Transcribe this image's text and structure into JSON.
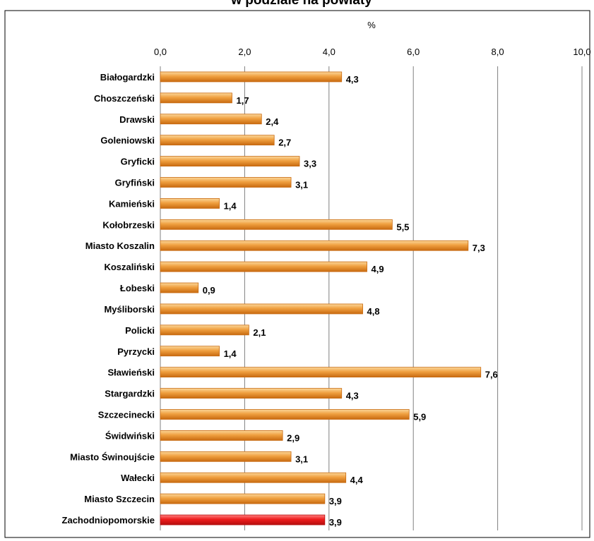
{
  "chart_data": {
    "type": "bar",
    "orientation": "horizontal",
    "title": "w podziale na powiaty",
    "xlabel": "%",
    "xlim": [
      0,
      10
    ],
    "x_ticks": [
      "0,0",
      "2,0",
      "4,0",
      "6,0",
      "8,0",
      "10,0"
    ],
    "grid": "vertical",
    "categories": [
      "Białogardzki",
      "Choszczeński",
      "Drawski",
      "Goleniowski",
      "Gryficki",
      "Gryfiński",
      "Kamieński",
      "Kołobrzeski",
      "Miasto Koszalin",
      "Koszaliński",
      "Łobeski",
      "Myśliborski",
      "Policki",
      "Pyrzycki",
      "Sławieński",
      "Stargardzki",
      "Szczecinecki",
      "Świdwiński",
      "Miasto Świnoujście",
      "Wałecki",
      "Miasto Szczecin",
      "Zachodniopomorskie"
    ],
    "values": [
      4.3,
      1.7,
      2.4,
      2.7,
      3.3,
      3.1,
      1.4,
      5.5,
      7.3,
      4.9,
      0.9,
      4.8,
      2.1,
      1.4,
      7.6,
      4.3,
      5.9,
      2.9,
      3.1,
      4.4,
      3.9,
      3.9
    ],
    "value_labels": [
      "4,3",
      "1,7",
      "2,4",
      "2,7",
      "3,3",
      "3,1",
      "1,4",
      "5,5",
      "7,3",
      "4,9",
      "0,9",
      "4,8",
      "2,1",
      "1,4",
      "7,6",
      "4,3",
      "5,9",
      "2,9",
      "3,1",
      "4,4",
      "3,9",
      "3,9"
    ],
    "colors": {
      "bar": "#f0a040",
      "bar_dark": "#c86a10",
      "bar_light": "#fbd79a",
      "highlight": "#ee1c1c",
      "highlight_dark": "#b40e0e",
      "highlight_light": "#ff8080",
      "grid": "#808080"
    },
    "highlight_index": 21
  }
}
